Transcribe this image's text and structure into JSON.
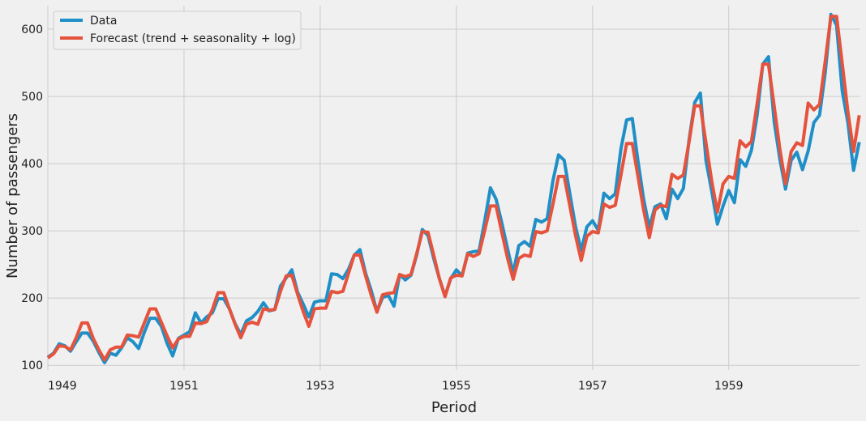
{
  "chart_data": {
    "type": "line",
    "xlabel": "Period",
    "ylabel": "Number of passengers",
    "xlim": [
      1949.0,
      1960.92
    ],
    "ylim": [
      93,
      635
    ],
    "x_ticks": [
      1949,
      1951,
      1953,
      1955,
      1957,
      1959
    ],
    "y_ticks": [
      100,
      200,
      300,
      400,
      500,
      600
    ],
    "x_tick_labels": [
      "1949",
      "1951",
      "1953",
      "1955",
      "1957",
      "1959"
    ],
    "y_tick_labels": [
      "100",
      "200",
      "300",
      "400",
      "500",
      "600"
    ],
    "grid": true,
    "legend": "top-left",
    "x_start": 1949.0,
    "x_step": 0.08333,
    "series": [
      {
        "name": "Data",
        "color": "#1f8fc7",
        "values": [
          112,
          118,
          132,
          129,
          121,
          135,
          148,
          148,
          136,
          119,
          104,
          118,
          115,
          126,
          141,
          135,
          125,
          149,
          170,
          170,
          158,
          133,
          114,
          140,
          145,
          150,
          178,
          163,
          172,
          178,
          199,
          199,
          184,
          162,
          146,
          166,
          171,
          180,
          193,
          181,
          183,
          218,
          230,
          242,
          209,
          191,
          172,
          194,
          196,
          196,
          236,
          235,
          229,
          243,
          264,
          272,
          237,
          211,
          180,
          201,
          204,
          188,
          235,
          227,
          234,
          264,
          302,
          293,
          259,
          229,
          203,
          229,
          242,
          233,
          267,
          269,
          270,
          315,
          364,
          347,
          312,
          274,
          237,
          278,
          284,
          277,
          317,
          313,
          318,
          374,
          413,
          405,
          355,
          306,
          271,
          306,
          315,
          301,
          356,
          348,
          355,
          422,
          465,
          467,
          404,
          347,
          305,
          336,
          340,
          318,
          362,
          348,
          363,
          435,
          491,
          505,
          404,
          359,
          310,
          337,
          360,
          342,
          406,
          396,
          420,
          472,
          548,
          559,
          463,
          407,
          362,
          405,
          417,
          391,
          419,
          461,
          472,
          535,
          622,
          606,
          508,
          461,
          390,
          432
        ]
      },
      {
        "name": "Forecast (trend + seasonality + log)",
        "color": "#e5533d",
        "values": [
          111,
          117,
          129,
          128,
          123,
          141,
          163,
          163,
          140,
          123,
          108,
          123,
          127,
          127,
          145,
          144,
          142,
          163,
          184,
          184,
          164,
          144,
          126,
          139,
          143,
          143,
          163,
          162,
          165,
          183,
          208,
          208,
          184,
          161,
          141,
          161,
          164,
          161,
          184,
          182,
          183,
          210,
          233,
          234,
          206,
          180,
          158,
          184,
          185,
          185,
          210,
          208,
          210,
          237,
          264,
          264,
          233,
          204,
          179,
          205,
          207,
          208,
          235,
          232,
          235,
          266,
          299,
          298,
          264,
          229,
          202,
          230,
          234,
          233,
          266,
          262,
          266,
          301,
          337,
          337,
          298,
          260,
          228,
          259,
          264,
          262,
          299,
          297,
          300,
          339,
          381,
          381,
          337,
          293,
          256,
          292,
          299,
          297,
          340,
          335,
          338,
          383,
          430,
          430,
          381,
          331,
          290,
          331,
          338,
          336,
          384,
          378,
          383,
          432,
          486,
          486,
          430,
          374,
          328,
          370,
          381,
          378,
          434,
          425,
          433,
          489,
          548,
          548,
          486,
          422,
          370,
          418,
          431,
          427,
          490,
          480,
          488,
          552,
          619,
          619,
          549,
          477,
          418,
          472
        ]
      }
    ]
  }
}
